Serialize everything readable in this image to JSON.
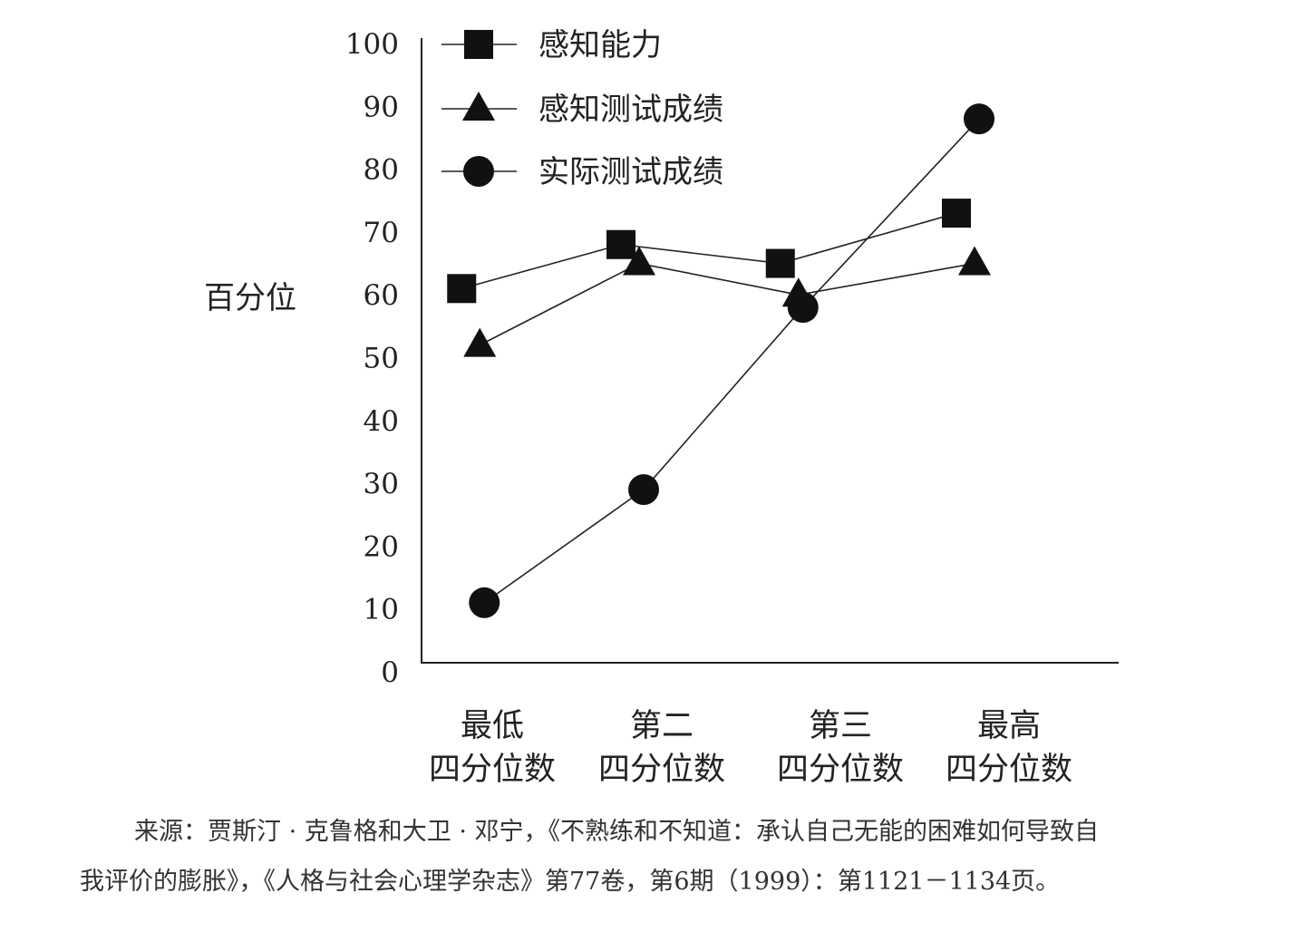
{
  "chart_data": {
    "type": "line",
    "ylabel": "百分位",
    "ylim": [
      0,
      100
    ],
    "yticks": [
      0,
      10,
      20,
      30,
      40,
      50,
      60,
      70,
      80,
      90,
      100
    ],
    "categories": [
      [
        "最低",
        "四分位数"
      ],
      [
        "第二",
        "四分位数"
      ],
      [
        "第三",
        "四分位数"
      ],
      [
        "最高",
        "四分位数"
      ]
    ],
    "grid": false,
    "legend_position": "top-left",
    "series": [
      {
        "name": "感知能力",
        "marker": "square",
        "x_pos": [
          0.05,
          1.0,
          1.95,
          3.0
        ],
        "values": [
          61,
          68,
          65,
          73
        ]
      },
      {
        "name": "感知测试成绩",
        "marker": "triangle",
        "x_pos": [
          0.05,
          1.0,
          1.95,
          3.0
        ],
        "values": [
          52,
          65,
          60,
          65
        ]
      },
      {
        "name": "实际测试成绩",
        "marker": "circle",
        "x_pos": [
          0.05,
          1.0,
          1.95,
          3.0
        ],
        "values": [
          11,
          29,
          58,
          88
        ]
      }
    ]
  },
  "source": {
    "line1": "来源：贾斯汀 · 克鲁格和大卫 · 邓宁，《不熟练和不知道：承认自己无能的困难如何导致自",
    "line2": "我评价的膨胀》，《人格与社会心理学杂志》第77卷，第6期（1999）：第1121－1134页。"
  }
}
